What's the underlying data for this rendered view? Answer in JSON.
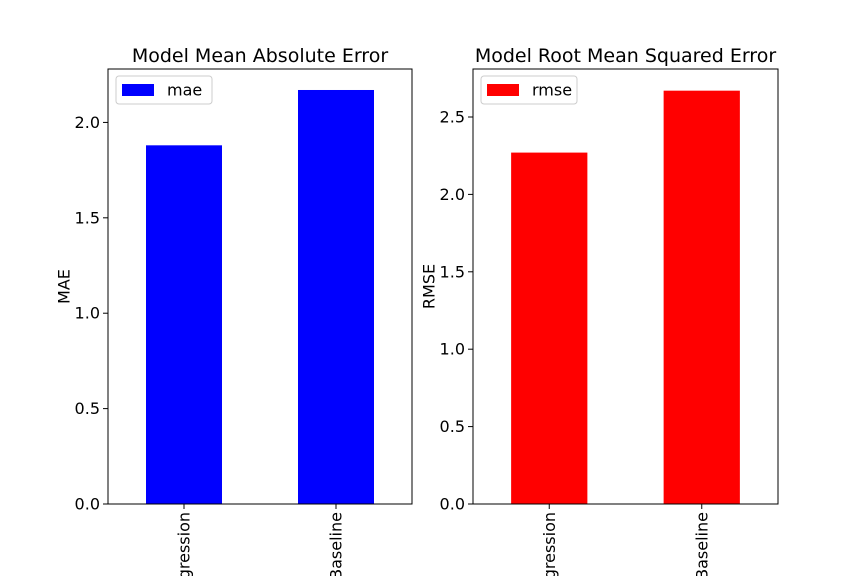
{
  "chart_data": [
    {
      "type": "bar",
      "title": "Model Mean Absolute Error",
      "xlabel": "",
      "ylabel": "MAE",
      "categories": [
        "Regression",
        "Baseline"
      ],
      "category_labels_visible": [
        "gression",
        "Baseline"
      ],
      "series": [
        {
          "name": "mae",
          "values": [
            1.88,
            2.17
          ],
          "color": "#0000ff"
        }
      ],
      "ylim": [
        0,
        2.28
      ],
      "yticks": [
        0.0,
        0.5,
        1.0,
        1.5,
        2.0
      ],
      "ytick_labels": [
        "0.0",
        "0.5",
        "1.0",
        "1.5",
        "2.0"
      ],
      "legend": "top-left",
      "grid": false
    },
    {
      "type": "bar",
      "title": "Model Root Mean Squared Error",
      "xlabel": "",
      "ylabel": "RMSE",
      "categories": [
        "Regression",
        "Baseline"
      ],
      "category_labels_visible": [
        "gression",
        "Baseline"
      ],
      "series": [
        {
          "name": "rmse",
          "values": [
            2.27,
            2.67
          ],
          "color": "#ff0000"
        }
      ],
      "ylim": [
        0,
        2.81
      ],
      "yticks": [
        0.0,
        0.5,
        1.0,
        1.5,
        2.0,
        2.5
      ],
      "ytick_labels": [
        "0.0",
        "0.5",
        "1.0",
        "1.5",
        "2.0",
        "2.5"
      ],
      "legend": "top-left",
      "grid": false
    }
  ]
}
